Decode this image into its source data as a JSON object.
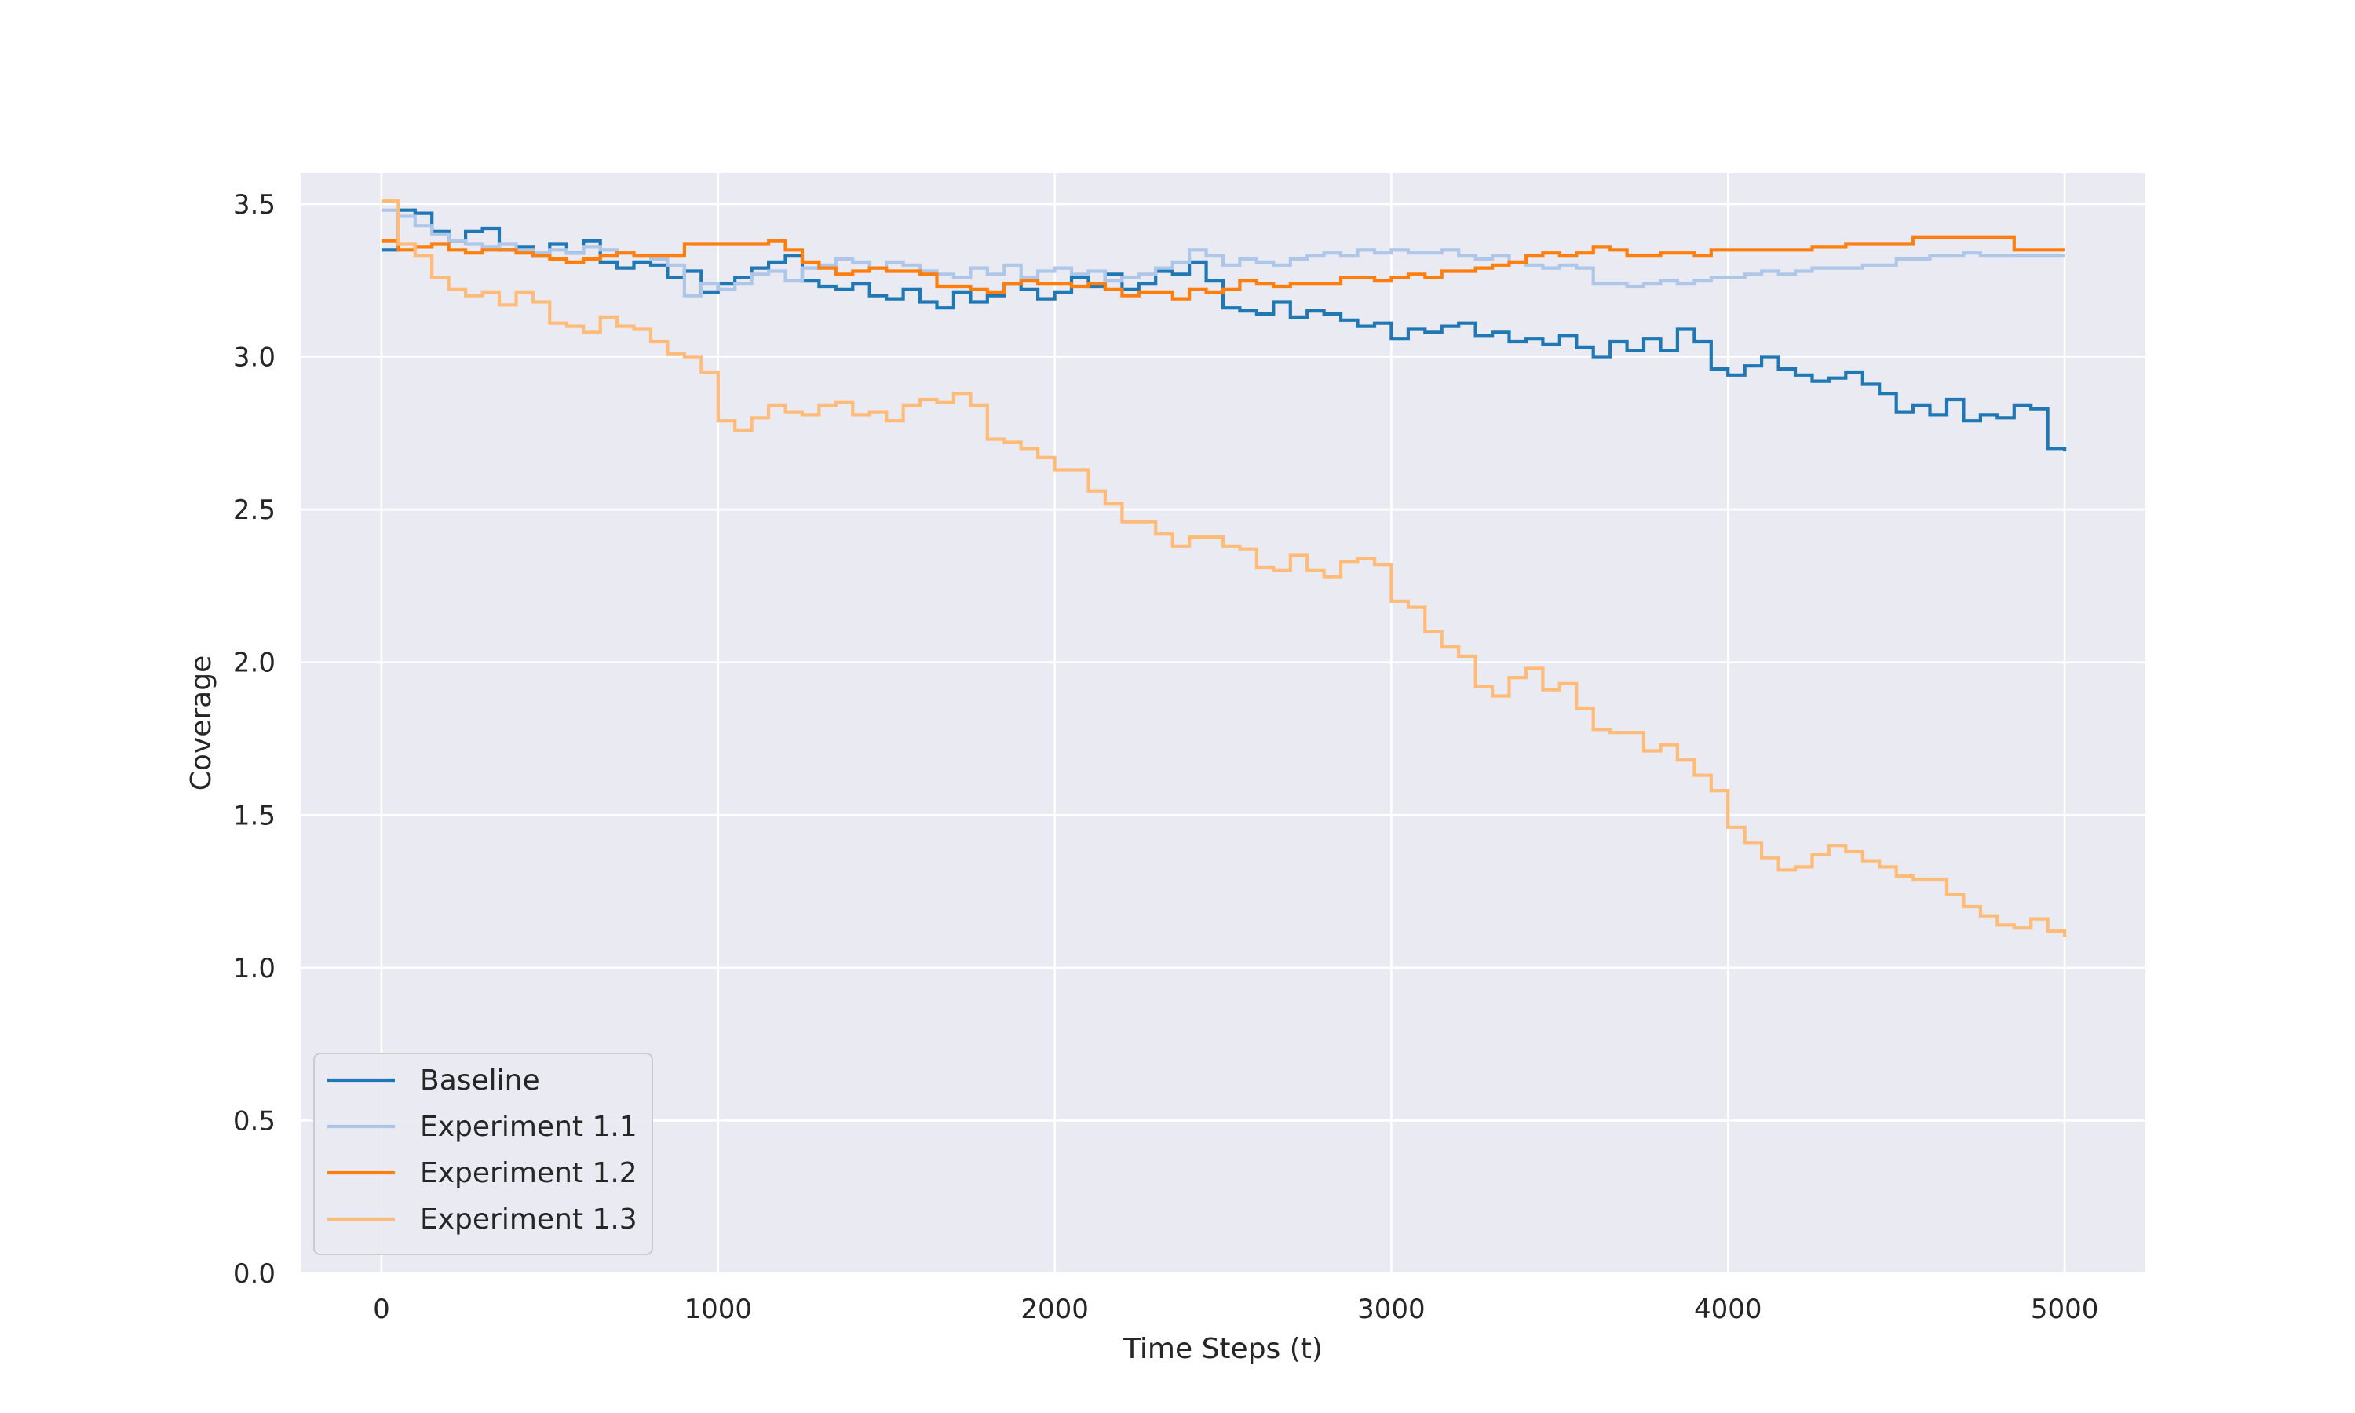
{
  "chart_data": {
    "type": "line",
    "title": "",
    "xlabel": "Time Steps (t)",
    "ylabel": "Coverage",
    "xlim": [
      -240,
      5240
    ],
    "ylim": [
      0.0,
      3.6
    ],
    "xticks": [
      0,
      1000,
      2000,
      3000,
      4000,
      5000
    ],
    "xtick_labels": [
      "0",
      "1000",
      "2000",
      "3000",
      "4000",
      "5000"
    ],
    "yticks": [
      0.0,
      0.5,
      1.0,
      1.5,
      2.0,
      2.5,
      3.0,
      3.5
    ],
    "ytick_labels": [
      "0.0",
      "0.5",
      "1.0",
      "1.5",
      "2.0",
      "2.5",
      "3.0",
      "3.5"
    ],
    "grid": true,
    "legend_position": "lower-left",
    "step": true,
    "series": [
      {
        "name": "Baseline",
        "color": "#1f77b4",
        "x": [
          0,
          50,
          100,
          150,
          200,
          250,
          300,
          350,
          400,
          450,
          500,
          550,
          600,
          650,
          700,
          750,
          800,
          850,
          900,
          950,
          1000,
          1050,
          1100,
          1150,
          1200,
          1250,
          1300,
          1350,
          1400,
          1450,
          1500,
          1550,
          1600,
          1650,
          1700,
          1750,
          1800,
          1850,
          1900,
          1950,
          2000,
          2050,
          2100,
          2150,
          2200,
          2250,
          2300,
          2350,
          2400,
          2450,
          2500,
          2550,
          2600,
          2650,
          2700,
          2750,
          2800,
          2850,
          2900,
          2950,
          3000,
          3050,
          3100,
          3150,
          3200,
          3250,
          3300,
          3350,
          3400,
          3450,
          3500,
          3550,
          3600,
          3650,
          3700,
          3750,
          3800,
          3850,
          3900,
          3950,
          4000,
          4050,
          4100,
          4150,
          4200,
          4250,
          4300,
          4350,
          4400,
          4450,
          4500,
          4550,
          4600,
          4650,
          4700,
          4750,
          4800,
          4850,
          4900,
          4950,
          5000
        ],
        "y": [
          3.35,
          3.48,
          3.47,
          3.41,
          3.38,
          3.41,
          3.42,
          3.35,
          3.36,
          3.33,
          3.37,
          3.34,
          3.38,
          3.31,
          3.29,
          3.31,
          3.3,
          3.26,
          3.28,
          3.21,
          3.24,
          3.26,
          3.29,
          3.31,
          3.33,
          3.25,
          3.23,
          3.22,
          3.24,
          3.2,
          3.19,
          3.22,
          3.18,
          3.16,
          3.21,
          3.18,
          3.2,
          3.24,
          3.22,
          3.19,
          3.21,
          3.26,
          3.23,
          3.27,
          3.22,
          3.24,
          3.28,
          3.27,
          3.31,
          3.25,
          3.16,
          3.15,
          3.14,
          3.18,
          3.13,
          3.15,
          3.14,
          3.12,
          3.1,
          3.11,
          3.06,
          3.09,
          3.08,
          3.1,
          3.11,
          3.07,
          3.08,
          3.05,
          3.06,
          3.04,
          3.07,
          3.03,
          3.0,
          3.05,
          3.02,
          3.06,
          3.02,
          3.09,
          3.05,
          2.96,
          2.94,
          2.97,
          3.0,
          2.96,
          2.94,
          2.92,
          2.93,
          2.95,
          2.91,
          2.88,
          2.82,
          2.84,
          2.81,
          2.86,
          2.79,
          2.81,
          2.8,
          2.84,
          2.83,
          2.7,
          2.69
        ]
      },
      {
        "name": "Experiment 1.1",
        "color": "#aec7e8",
        "x": [
          0,
          50,
          100,
          150,
          200,
          250,
          300,
          350,
          400,
          450,
          500,
          550,
          600,
          650,
          700,
          750,
          800,
          850,
          900,
          950,
          1000,
          1050,
          1100,
          1150,
          1200,
          1250,
          1300,
          1350,
          1400,
          1450,
          1500,
          1550,
          1600,
          1650,
          1700,
          1750,
          1800,
          1850,
          1900,
          1950,
          2000,
          2050,
          2100,
          2150,
          2200,
          2250,
          2300,
          2350,
          2400,
          2450,
          2500,
          2550,
          2600,
          2650,
          2700,
          2750,
          2800,
          2850,
          2900,
          2950,
          3000,
          3050,
          3100,
          3150,
          3200,
          3250,
          3300,
          3350,
          3400,
          3450,
          3500,
          3550,
          3600,
          3650,
          3700,
          3750,
          3800,
          3850,
          3900,
          3950,
          4000,
          4050,
          4100,
          4150,
          4200,
          4250,
          4300,
          4350,
          4400,
          4450,
          4500,
          4550,
          4600,
          4650,
          4700,
          4750,
          4800,
          4850,
          4900,
          4950,
          5000
        ],
        "y": [
          3.48,
          3.46,
          3.43,
          3.4,
          3.38,
          3.37,
          3.36,
          3.37,
          3.35,
          3.34,
          3.35,
          3.34,
          3.36,
          3.35,
          3.34,
          3.33,
          3.32,
          3.3,
          3.2,
          3.24,
          3.22,
          3.24,
          3.27,
          3.28,
          3.25,
          3.29,
          3.3,
          3.32,
          3.31,
          3.29,
          3.31,
          3.3,
          3.28,
          3.27,
          3.26,
          3.29,
          3.27,
          3.3,
          3.26,
          3.28,
          3.29,
          3.27,
          3.28,
          3.25,
          3.26,
          3.27,
          3.29,
          3.31,
          3.35,
          3.33,
          3.3,
          3.32,
          3.31,
          3.3,
          3.32,
          3.33,
          3.34,
          3.33,
          3.35,
          3.34,
          3.35,
          3.34,
          3.34,
          3.35,
          3.33,
          3.32,
          3.33,
          3.31,
          3.3,
          3.29,
          3.3,
          3.29,
          3.24,
          3.24,
          3.23,
          3.24,
          3.25,
          3.24,
          3.25,
          3.26,
          3.26,
          3.27,
          3.28,
          3.27,
          3.28,
          3.29,
          3.29,
          3.29,
          3.3,
          3.3,
          3.32,
          3.32,
          3.33,
          3.33,
          3.34,
          3.33,
          3.33,
          3.33,
          3.33,
          3.33,
          3.33
        ]
      },
      {
        "name": "Experiment 1.2",
        "color": "#ff7f0e",
        "x": [
          0,
          50,
          100,
          150,
          200,
          250,
          300,
          350,
          400,
          450,
          500,
          550,
          600,
          650,
          700,
          750,
          800,
          850,
          900,
          950,
          1000,
          1050,
          1100,
          1150,
          1200,
          1250,
          1300,
          1350,
          1400,
          1450,
          1500,
          1550,
          1600,
          1650,
          1700,
          1750,
          1800,
          1850,
          1900,
          1950,
          2000,
          2050,
          2100,
          2150,
          2200,
          2250,
          2300,
          2350,
          2400,
          2450,
          2500,
          2550,
          2600,
          2650,
          2700,
          2750,
          2800,
          2850,
          2900,
          2950,
          3000,
          3050,
          3100,
          3150,
          3200,
          3250,
          3300,
          3350,
          3400,
          3450,
          3500,
          3550,
          3600,
          3650,
          3700,
          3750,
          3800,
          3850,
          3900,
          3950,
          4000,
          4050,
          4100,
          4150,
          4200,
          4250,
          4300,
          4350,
          4400,
          4450,
          4500,
          4550,
          4600,
          4650,
          4700,
          4750,
          4800,
          4850,
          4900,
          4950,
          5000
        ],
        "y": [
          3.38,
          3.35,
          3.36,
          3.37,
          3.35,
          3.34,
          3.35,
          3.35,
          3.34,
          3.33,
          3.32,
          3.31,
          3.32,
          3.33,
          3.34,
          3.33,
          3.33,
          3.33,
          3.37,
          3.37,
          3.37,
          3.37,
          3.37,
          3.38,
          3.35,
          3.31,
          3.29,
          3.27,
          3.28,
          3.29,
          3.28,
          3.28,
          3.27,
          3.23,
          3.23,
          3.22,
          3.21,
          3.24,
          3.25,
          3.24,
          3.24,
          3.23,
          3.24,
          3.22,
          3.2,
          3.21,
          3.21,
          3.19,
          3.22,
          3.21,
          3.22,
          3.25,
          3.24,
          3.23,
          3.24,
          3.24,
          3.24,
          3.26,
          3.26,
          3.25,
          3.26,
          3.27,
          3.26,
          3.28,
          3.28,
          3.29,
          3.3,
          3.31,
          3.33,
          3.34,
          3.33,
          3.34,
          3.36,
          3.35,
          3.33,
          3.33,
          3.34,
          3.34,
          3.33,
          3.35,
          3.35,
          3.35,
          3.35,
          3.35,
          3.35,
          3.36,
          3.36,
          3.37,
          3.37,
          3.37,
          3.37,
          3.39,
          3.39,
          3.39,
          3.39,
          3.39,
          3.39,
          3.35,
          3.35,
          3.35,
          3.35
        ]
      },
      {
        "name": "Experiment 1.3",
        "color": "#ffbb78",
        "x": [
          0,
          50,
          100,
          150,
          200,
          250,
          300,
          350,
          400,
          450,
          500,
          550,
          600,
          650,
          700,
          750,
          800,
          850,
          900,
          950,
          1000,
          1050,
          1100,
          1150,
          1200,
          1250,
          1300,
          1350,
          1400,
          1450,
          1500,
          1550,
          1600,
          1650,
          1700,
          1750,
          1800,
          1850,
          1900,
          1950,
          2000,
          2050,
          2100,
          2150,
          2200,
          2250,
          2300,
          2350,
          2400,
          2450,
          2500,
          2550,
          2600,
          2650,
          2700,
          2750,
          2800,
          2850,
          2900,
          2950,
          3000,
          3050,
          3100,
          3150,
          3200,
          3250,
          3300,
          3350,
          3400,
          3450,
          3500,
          3550,
          3600,
          3650,
          3700,
          3750,
          3800,
          3850,
          3900,
          3950,
          4000,
          4050,
          4100,
          4150,
          4200,
          4250,
          4300,
          4350,
          4400,
          4450,
          4500,
          4550,
          4600,
          4650,
          4700,
          4750,
          4800,
          4850,
          4900,
          4950,
          5000
        ],
        "y": [
          3.51,
          3.37,
          3.33,
          3.26,
          3.22,
          3.2,
          3.21,
          3.17,
          3.21,
          3.18,
          3.11,
          3.1,
          3.08,
          3.13,
          3.1,
          3.09,
          3.05,
          3.01,
          3.0,
          2.95,
          2.79,
          2.76,
          2.8,
          2.84,
          2.82,
          2.81,
          2.84,
          2.85,
          2.81,
          2.82,
          2.79,
          2.84,
          2.86,
          2.85,
          2.88,
          2.84,
          2.73,
          2.72,
          2.7,
          2.67,
          2.63,
          2.63,
          2.56,
          2.52,
          2.46,
          2.46,
          2.42,
          2.38,
          2.41,
          2.41,
          2.38,
          2.37,
          2.31,
          2.3,
          2.35,
          2.3,
          2.28,
          2.33,
          2.34,
          2.32,
          2.2,
          2.18,
          2.1,
          2.05,
          2.02,
          1.92,
          1.89,
          1.95,
          1.98,
          1.91,
          1.93,
          1.85,
          1.78,
          1.77,
          1.77,
          1.71,
          1.73,
          1.68,
          1.63,
          1.58,
          1.46,
          1.41,
          1.36,
          1.32,
          1.33,
          1.37,
          1.4,
          1.38,
          1.35,
          1.33,
          1.3,
          1.29,
          1.29,
          1.24,
          1.2,
          1.17,
          1.14,
          1.13,
          1.16,
          1.12,
          1.1
        ]
      }
    ]
  }
}
